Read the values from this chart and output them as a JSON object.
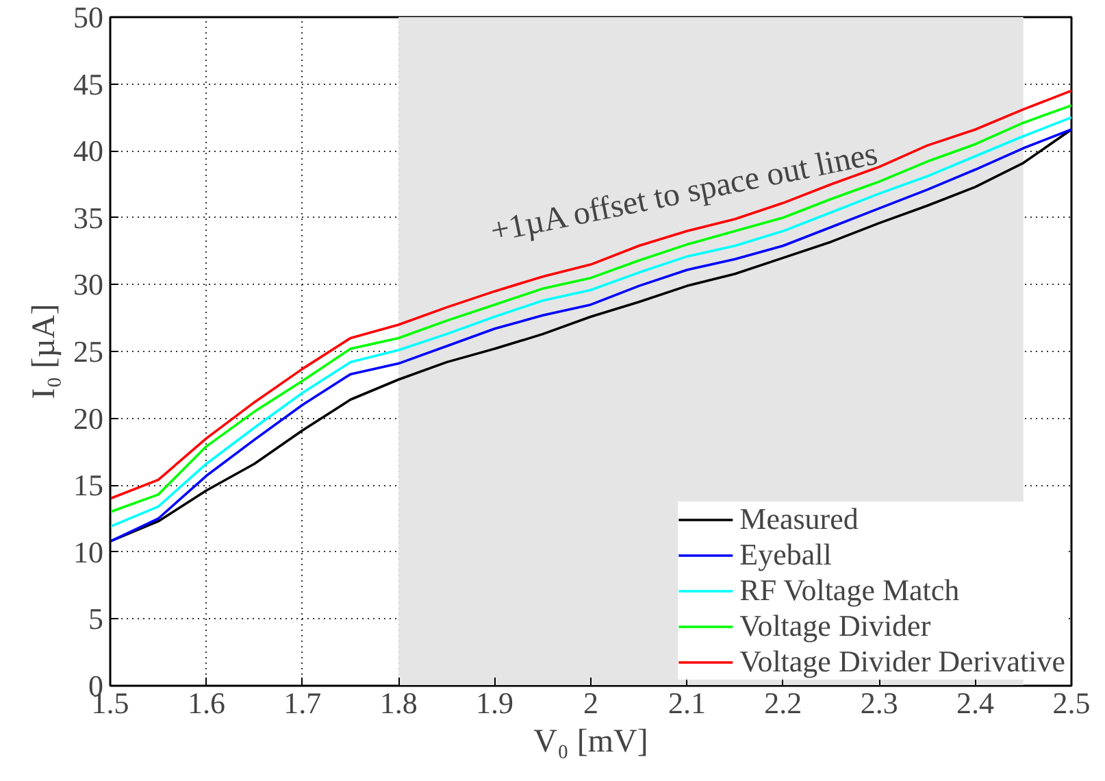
{
  "chart_data": {
    "type": "line",
    "xlabel": "V₀ [mV]",
    "ylabel": "I₀ [µA]",
    "x": [
      1.5,
      1.55,
      1.6,
      1.65,
      1.7,
      1.75,
      1.8,
      1.85,
      1.9,
      1.95,
      2.0,
      2.05,
      2.1,
      2.15,
      2.2,
      2.25,
      2.3,
      2.35,
      2.4,
      2.45,
      2.5
    ],
    "series": [
      {
        "name": "Measured",
        "color": "#000000",
        "values": [
          10.8,
          12.3,
          14.6,
          16.6,
          19.1,
          21.4,
          22.9,
          24.2,
          25.2,
          26.3,
          27.6,
          28.7,
          29.9,
          30.8,
          32.0,
          33.2,
          34.6,
          35.9,
          37.3,
          39.1,
          41.6
        ]
      },
      {
        "name": "Eyeball",
        "color": "#0000ff",
        "values": [
          10.8,
          12.5,
          15.7,
          18.4,
          21.0,
          23.3,
          24.1,
          25.4,
          26.7,
          27.7,
          28.5,
          29.9,
          31.1,
          31.9,
          32.9,
          34.3,
          35.7,
          37.1,
          38.6,
          40.2,
          41.6
        ]
      },
      {
        "name": "RF Voltage Match",
        "color": "#00ffff",
        "values": [
          11.9,
          13.4,
          16.6,
          19.3,
          21.9,
          24.2,
          25.1,
          26.3,
          27.6,
          28.8,
          29.6,
          30.9,
          32.1,
          32.9,
          34.0,
          35.4,
          36.8,
          38.1,
          39.6,
          41.1,
          42.5
        ]
      },
      {
        "name": "Voltage Divider",
        "color": "#00ff00",
        "values": [
          13.0,
          14.3,
          17.9,
          20.5,
          22.8,
          25.2,
          26.0,
          27.3,
          28.5,
          29.7,
          30.5,
          31.8,
          33.0,
          34.0,
          35.0,
          36.4,
          37.7,
          39.2,
          40.5,
          42.1,
          43.4
        ]
      },
      {
        "name": "Voltage Divider Derivative",
        "color": "#ff0000",
        "values": [
          14.0,
          15.4,
          18.5,
          21.2,
          23.7,
          26.0,
          27.0,
          28.3,
          29.5,
          30.6,
          31.5,
          32.9,
          34.0,
          34.9,
          36.1,
          37.5,
          38.8,
          40.4,
          41.6,
          43.1,
          44.5
        ]
      }
    ],
    "xlim": [
      1.5,
      2.5
    ],
    "ylim": [
      0,
      50
    ],
    "xticks": [
      1.5,
      1.6,
      1.7,
      1.8,
      1.9,
      2,
      2.1,
      2.2,
      2.3,
      2.4,
      2.5
    ],
    "yticks": [
      0,
      5,
      10,
      15,
      20,
      25,
      30,
      35,
      40,
      45,
      50
    ],
    "bands": [
      {
        "axis": "x",
        "from": 1.8,
        "to": 2.45,
        "color": "#e5e5e5"
      }
    ],
    "annotations": [
      "+1µA offset to space out lines"
    ],
    "grid": true,
    "legend": "bottom right",
    "line_style": "solid"
  }
}
